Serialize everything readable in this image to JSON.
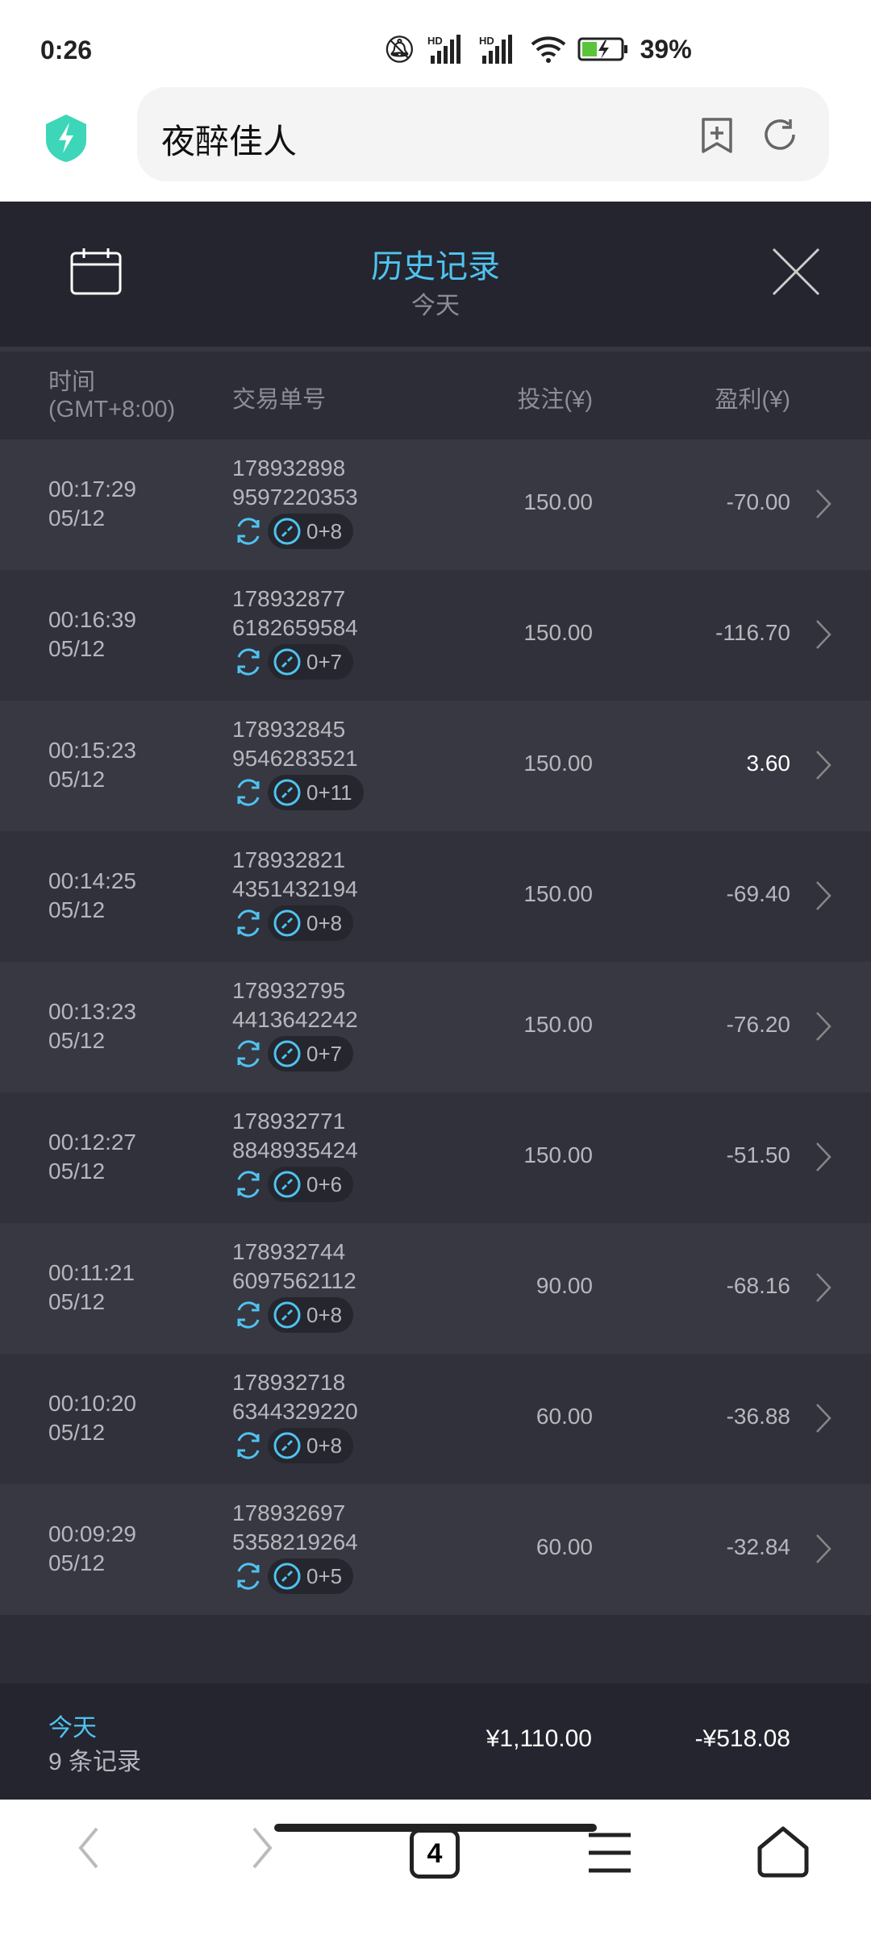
{
  "status_bar": {
    "time": "0:26",
    "battery": "39%",
    "icons": [
      "bell-off-icon",
      "signal-hd-icon",
      "signal-hd-icon",
      "wifi-icon",
      "battery-charging-icon"
    ]
  },
  "browser": {
    "title": "夜醉佳人",
    "icons": [
      "shield-icon",
      "add-bookmark-icon",
      "refresh-icon"
    ]
  },
  "header": {
    "title": "历史记录",
    "subtitle": "今天"
  },
  "columns": {
    "time": "时间",
    "tz": "(GMT+8:00)",
    "id": "交易单号",
    "bet": "投注(¥)",
    "profit": "盈利(¥)"
  },
  "rows": [
    {
      "time": "00:17:29",
      "date": "05/12",
      "id1": "178932898",
      "id2": "9597220353",
      "tag": "0+8",
      "bet": "150.00",
      "profit": "-70.00"
    },
    {
      "time": "00:16:39",
      "date": "05/12",
      "id1": "178932877",
      "id2": "6182659584",
      "tag": "0+7",
      "bet": "150.00",
      "profit": "-116.70"
    },
    {
      "time": "00:15:23",
      "date": "05/12",
      "id1": "178932845",
      "id2": "9546283521",
      "tag": "0+11",
      "bet": "150.00",
      "profit": "3.60"
    },
    {
      "time": "00:14:25",
      "date": "05/12",
      "id1": "178932821",
      "id2": "4351432194",
      "tag": "0+8",
      "bet": "150.00",
      "profit": "-69.40"
    },
    {
      "time": "00:13:23",
      "date": "05/12",
      "id1": "178932795",
      "id2": "4413642242",
      "tag": "0+7",
      "bet": "150.00",
      "profit": "-76.20"
    },
    {
      "time": "00:12:27",
      "date": "05/12",
      "id1": "178932771",
      "id2": "8848935424",
      "tag": "0+6",
      "bet": "150.00",
      "profit": "-51.50"
    },
    {
      "time": "00:11:21",
      "date": "05/12",
      "id1": "178932744",
      "id2": "6097562112",
      "tag": "0+8",
      "bet": "90.00",
      "profit": "-68.16"
    },
    {
      "time": "00:10:20",
      "date": "05/12",
      "id1": "178932718",
      "id2": "6344329220",
      "tag": "0+8",
      "bet": "60.00",
      "profit": "-36.88"
    },
    {
      "time": "00:09:29",
      "date": "05/12",
      "id1": "178932697",
      "id2": "5358219264",
      "tag": "0+5",
      "bet": "60.00",
      "profit": "-32.84"
    }
  ],
  "footer": {
    "label": "今天",
    "count": "9 条记录",
    "total_bet": "¥1,110.00",
    "total_profit": "-¥518.08"
  },
  "nav": {
    "tabs_count": "4"
  },
  "colors": {
    "accent": "#4fc3f0",
    "bg": "#2c2d36",
    "header": "#24252e"
  }
}
